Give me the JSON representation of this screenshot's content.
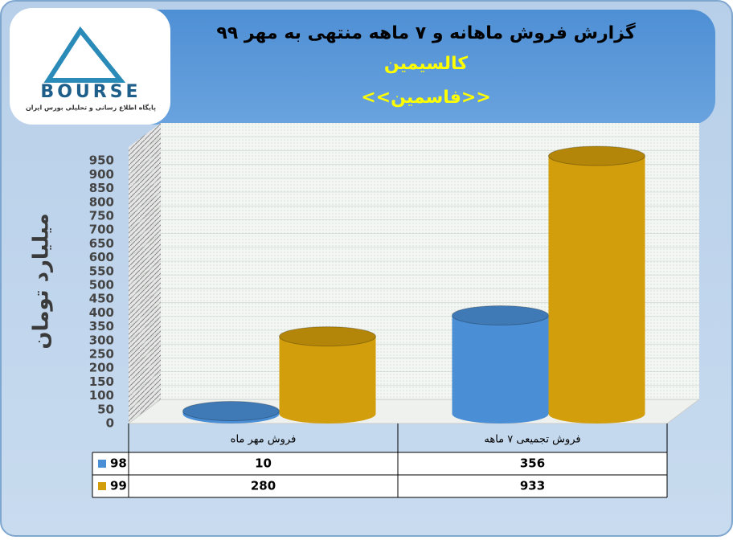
{
  "logo": {
    "text": "BOURSE",
    "caption": "پایگاه اطلاع رسانی و تحلیلی بورس ایران"
  },
  "chart_data": {
    "type": "bar",
    "title": "گزارش فروش ماهانه و ۷ ماهه منتهی به مهر ۹۹",
    "subtitle": "کالسیمین",
    "subtitle2": "<<فاسمین>>",
    "y_label": "میلیارد تومان",
    "categories": [
      "فروش مهر  ماه",
      "فروش تجمیعی ۷ ماهه"
    ],
    "series": [
      {
        "name": "98",
        "color": "#4a8fd6",
        "values": [
          10,
          356
        ]
      },
      {
        "name": "99",
        "color": "#d29e0c",
        "values": [
          280,
          933
        ]
      }
    ],
    "ylim": [
      0,
      1000
    ],
    "yticks": [
      0,
      50,
      100,
      150,
      200,
      250,
      300,
      350,
      400,
      450,
      500,
      550,
      600,
      650,
      700,
      750,
      800,
      850,
      900,
      950
    ],
    "grid": true
  }
}
